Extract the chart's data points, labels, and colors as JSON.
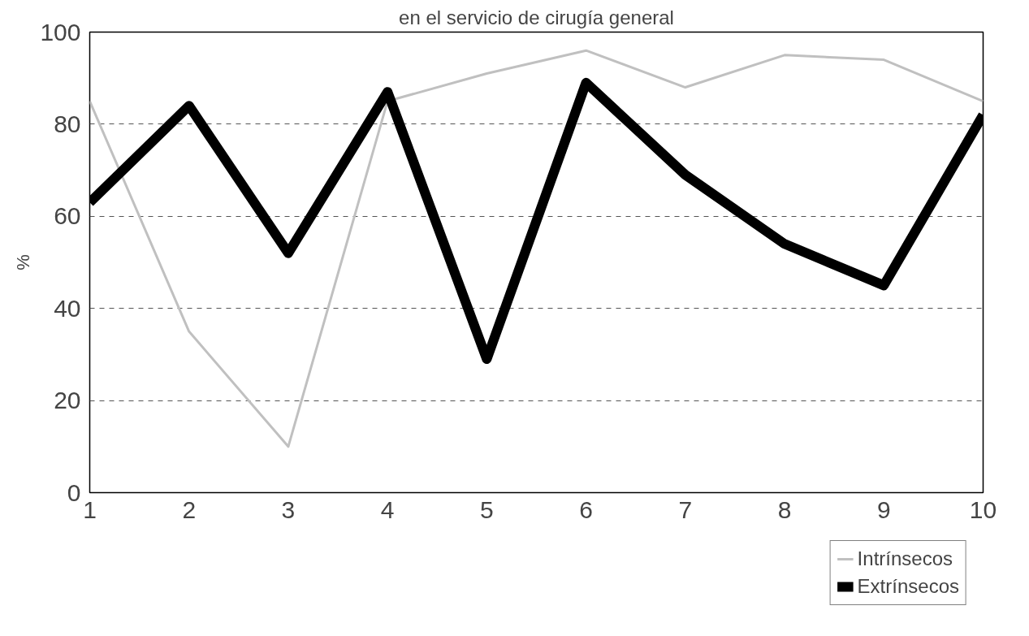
{
  "chart_data": {
    "type": "line",
    "title": "en el servicio de cirugía general",
    "ylabel": "%",
    "x": [
      1,
      2,
      3,
      4,
      5,
      6,
      7,
      8,
      9,
      10
    ],
    "series": [
      {
        "name": "Intrínsecos",
        "color": "#c0c0c0",
        "values": [
          85,
          35,
          10,
          85,
          91,
          96,
          88,
          95,
          94,
          85
        ]
      },
      {
        "name": "Extrínsecos",
        "color": "#000000",
        "values": [
          63,
          84,
          52,
          87,
          29,
          89,
          69,
          54,
          45,
          82
        ]
      }
    ],
    "xlim": [
      1,
      10
    ],
    "xticks": [
      1,
      2,
      3,
      4,
      5,
      6,
      7,
      8,
      9,
      10
    ],
    "ylim": [
      0,
      100
    ],
    "yticks": [
      0,
      20,
      40,
      60,
      80,
      100
    ],
    "grid": "y",
    "legend": "bottom right",
    "marker": "none",
    "line_style": "solid"
  }
}
